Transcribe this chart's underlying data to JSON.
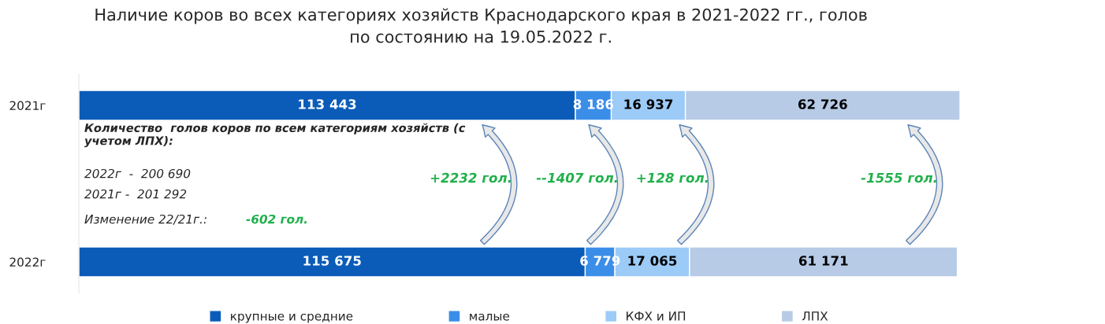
{
  "chart_data": {
    "type": "bar",
    "orientation": "horizontal",
    "stacked": true,
    "title": "Наличие коров во всех категориях хозяйств Краснодарского края в 2021-2022 гг., голов\nпо состоянию на 19.05.2022 г.",
    "categories": [
      "2021г",
      "2022г"
    ],
    "series": [
      {
        "name": "крупные и средние",
        "color": "#0b5cb8",
        "values": [
          113443,
          115675
        ],
        "value_labels": [
          "113 443",
          "115 675"
        ]
      },
      {
        "name": "малые",
        "color": "#3b8ee8",
        "values": [
          8186,
          6779
        ],
        "value_labels": [
          "8 186",
          "6 779"
        ]
      },
      {
        "name": "КФХ и ИП",
        "color": "#9dcbf7",
        "values": [
          16937,
          17065
        ],
        "value_labels": [
          "16 937",
          "17 065"
        ]
      },
      {
        "name": "ЛПХ",
        "color": "#b7cbe6",
        "values": [
          62726,
          61171
        ],
        "value_labels": [
          "62 726",
          "61 171"
        ]
      }
    ],
    "annotations": [
      "Количество  голов коров по всем категориям хозяйств (с учетом ЛПХ):",
      "2022г  -  200 690",
      "2021г -  201 292",
      "Изменение 22/21г.:",
      "-602 гол.",
      "+2232 гол.",
      "--1407 гол.",
      "+128 гол.",
      "-1555 гол."
    ],
    "legend": "bottom",
    "tick_labels": "y",
    "grid": false
  }
}
